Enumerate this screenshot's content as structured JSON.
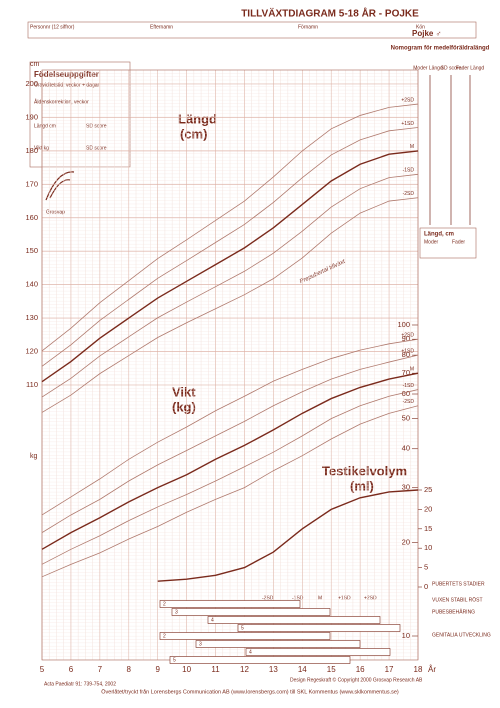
{
  "header": {
    "title": "TILLVÄXTDIAGRAM 5-18 ÅR - POJKE",
    "fields": [
      "Personnr (12 siffror)",
      "Efternamn",
      "Förnamn",
      "Kön"
    ],
    "sex": "Pojke ♂"
  },
  "birth": {
    "title": "Födelseuppgifter",
    "fields": [
      "Graviditetstid, veckor + dagar",
      "Åldenskorrektion, veckor",
      "Längd cm",
      "SD score",
      "Vikt kg",
      "SD score"
    ],
    "logo": "Grosvap"
  },
  "nomogram": {
    "title": "Nomogram för medelföräldralängd",
    "columns": [
      "Moder Längd",
      "SD score",
      "Fader Längd"
    ],
    "box_title": "Längd, cm",
    "box_columns": [
      "Moder",
      "Fader"
    ]
  },
  "labels": {
    "height": "Längd",
    "height_unit": "(cm)",
    "weight": "Vikt",
    "weight_unit": "(kg)",
    "testis": "Testikelvolym",
    "testis_unit": "(ml)",
    "prepubertal": "Prepubertal tillväxt",
    "cm": "cm",
    "kg": "kg",
    "age_unit": "År"
  },
  "puberty": {
    "sd_labels": [
      "-2SD",
      "-1SD",
      "M",
      "+1SD",
      "+2SD"
    ],
    "rows": [
      "PUBERTETS STADIER",
      "VUXEN STABIL RÖST",
      "PUBESBEHÅRING",
      "GENITALIA UTVECKLING"
    ],
    "stages": [
      "2",
      "3",
      "4",
      "5",
      "2",
      "3",
      "4",
      "5"
    ]
  },
  "footer": {
    "design": "Design Regeskraft © Copyright 2000 Grosvap Research AB",
    "ref": "Acta Paediatr 91: 739-754, 2002",
    "print": "Överlåtet/tryckt från Lorensbergs Communication AB (www.lorensbergs.com) till SKL Kommentus (www.sklkommentus.se)"
  },
  "chart_data": [
    {
      "type": "line",
      "x": [
        5,
        6,
        7,
        8,
        9,
        10,
        11,
        12,
        13,
        14,
        15,
        16,
        17,
        18
      ],
      "xlim": [
        5,
        18
      ],
      "xticks": [
        5,
        6,
        7,
        8,
        9,
        10,
        11,
        12,
        13,
        14,
        15,
        16,
        17,
        18
      ],
      "ylim": [
        110,
        200
      ],
      "yticks": [
        110,
        120,
        130,
        140,
        150,
        160,
        170,
        180,
        190,
        200
      ],
      "grid": true,
      "series": [
        {
          "name": "+2SD",
          "color": "#b07a6e",
          "values": [
            120.2,
            127,
            134.6,
            141.2,
            147.8,
            153.4,
            159.2,
            165,
            172.2,
            180,
            186.6,
            190.6,
            193,
            194
          ]
        },
        {
          "name": "+1SD",
          "color": "#b07a6e",
          "values": [
            115.6,
            122,
            129.3,
            135.6,
            141.9,
            147.2,
            152.6,
            158,
            164.6,
            172,
            178.8,
            183.3,
            186,
            187
          ]
        },
        {
          "name": "M",
          "color": "#7a2a1c",
          "values": [
            111,
            117,
            124,
            130,
            136,
            141,
            146,
            151,
            157,
            164,
            171,
            176,
            179,
            180
          ]
        },
        {
          "name": "-1SD",
          "color": "#b07a6e",
          "values": [
            106.4,
            112,
            118.7,
            124.4,
            130.1,
            134.8,
            139.4,
            144,
            149.4,
            156,
            163.2,
            168.7,
            172,
            173
          ]
        },
        {
          "name": "-2SD",
          "color": "#b07a6e",
          "values": [
            101.8,
            107,
            113.4,
            118.8,
            124.2,
            128.6,
            132.8,
            137,
            141.8,
            148,
            155.4,
            161.4,
            165,
            166
          ]
        }
      ]
    },
    {
      "type": "line",
      "x": [
        5,
        6,
        7,
        8,
        9,
        10,
        11,
        12,
        13,
        14,
        15,
        16,
        17,
        18
      ],
      "xlim": [
        5,
        18
      ],
      "log_scale": true,
      "ylim": [
        10,
        100
      ],
      "yticks": [
        10,
        20,
        30,
        40,
        50,
        60,
        70,
        80,
        90,
        100
      ],
      "series": [
        {
          "name": "+2SD",
          "color": "#b07a6e",
          "values": [
            24.5,
            28,
            32,
            37,
            42,
            47,
            53,
            59,
            66,
            72,
            78,
            83,
            87,
            90
          ]
        },
        {
          "name": "+1SD",
          "color": "#b07a6e",
          "values": [
            21.5,
            24.5,
            27.5,
            31.5,
            35.5,
            39.5,
            44,
            49,
            55,
            61,
            67,
            72,
            76,
            80
          ]
        },
        {
          "name": "M",
          "color": "#7a2a1c",
          "values": [
            19,
            21.5,
            24,
            27,
            30,
            33,
            37,
            41,
            46,
            52,
            58,
            63,
            67,
            70
          ]
        },
        {
          "name": "-1SD",
          "color": "#b07a6e",
          "values": [
            17,
            19,
            21,
            23.5,
            26,
            28.5,
            31.5,
            35,
            39,
            44,
            50,
            55,
            59,
            62
          ]
        },
        {
          "name": "-2SD",
          "color": "#b07a6e",
          "values": [
            15.5,
            17,
            18.5,
            20.5,
            22.5,
            25,
            27.5,
            30,
            34,
            38,
            43,
            48,
            52,
            55
          ]
        }
      ]
    },
    {
      "type": "line",
      "x": [
        9,
        10,
        11,
        12,
        13,
        14,
        15,
        16,
        17,
        18
      ],
      "xlim": [
        5,
        18
      ],
      "ylim": [
        0,
        25
      ],
      "yticks": [
        0,
        5,
        10,
        15,
        20,
        25
      ],
      "series": [
        {
          "name": "M",
          "color": "#7a2a1c",
          "values": [
            1.5,
            2,
            3,
            5,
            9,
            15,
            20,
            23,
            24.5,
            25
          ]
        }
      ]
    }
  ]
}
